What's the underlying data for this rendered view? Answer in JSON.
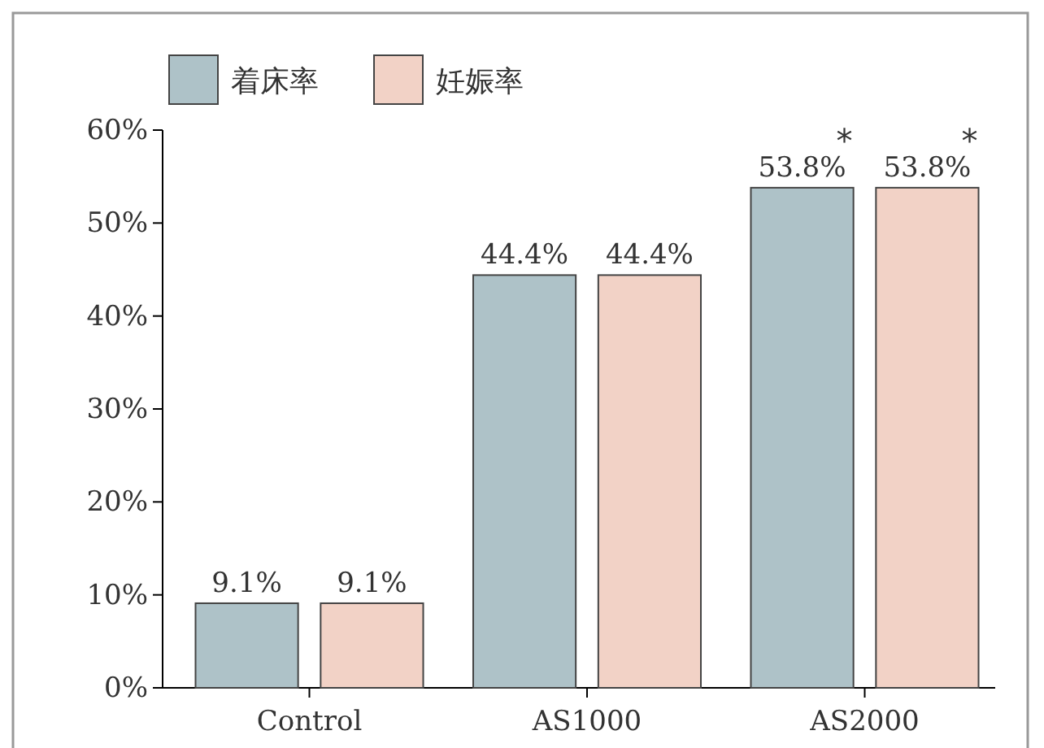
{
  "chart_data": {
    "type": "bar",
    "categories": [
      "Control",
      "AS1000",
      "AS2000"
    ],
    "series": [
      {
        "name": "着床率",
        "color": "#aec2c8",
        "values": [
          9.1,
          44.4,
          53.8
        ],
        "value_labels": [
          "9.1%",
          "44.4%",
          "53.8%"
        ]
      },
      {
        "name": "妊娠率",
        "color": "#f2d2c6",
        "values": [
          9.1,
          44.4,
          53.8
        ],
        "value_labels": [
          "9.1%",
          "44.4%",
          "53.8%"
        ]
      }
    ],
    "ylim": [
      0,
      60
    ],
    "yticks": [
      {
        "value": 0,
        "label": "0%"
      },
      {
        "value": 10,
        "label": "10%"
      },
      {
        "value": 20,
        "label": "20%"
      },
      {
        "value": 30,
        "label": "30%"
      },
      {
        "value": 40,
        "label": "40%"
      },
      {
        "value": 50,
        "label": "50%"
      },
      {
        "value": 60,
        "label": "60%"
      }
    ],
    "annotations": [
      "*",
      "*"
    ],
    "legend": "top left",
    "grid": false
  }
}
